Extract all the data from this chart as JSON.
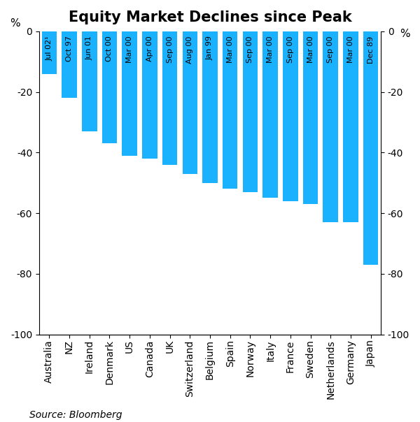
{
  "title": "Equity Market Declines since Peak",
  "categories": [
    "Australia",
    "NZ",
    "Ireland",
    "Denmark",
    "US",
    "Canada",
    "UK",
    "Switzerland",
    "Belgium",
    "Spain",
    "Norway",
    "Italy",
    "France",
    "Sweden",
    "Netherlands",
    "Germany",
    "Japan"
  ],
  "dates": [
    "Jul 02¹",
    "Oct 97",
    "Jun 01",
    "Oct 00",
    "Mar 00",
    "Apr 00",
    "Sep 00",
    "Aug 00",
    "Jan 99",
    "Mar 00",
    "Sep 00",
    "Mar 00",
    "Sep 00",
    "Mar 00",
    "Sep 00",
    "Mar 00",
    "Dec 89"
  ],
  "values": [
    -14,
    -22,
    -33,
    -37,
    -41,
    -42,
    -44,
    -47,
    -50,
    -52,
    -53,
    -55,
    -56,
    -57,
    -63,
    -63,
    -77
  ],
  "bar_color": "#1ab2ff",
  "ylim": [
    -100,
    0
  ],
  "yticks": [
    -100,
    -80,
    -60,
    -40,
    -20,
    0
  ],
  "ylabel_left": "%",
  "ylabel_right": "%",
  "source": "Source: Bloomberg",
  "bg_color": "#ffffff",
  "title_fontsize": 15,
  "axis_fontsize": 11,
  "tick_fontsize": 10,
  "date_fontsize": 8,
  "source_fontsize": 10
}
